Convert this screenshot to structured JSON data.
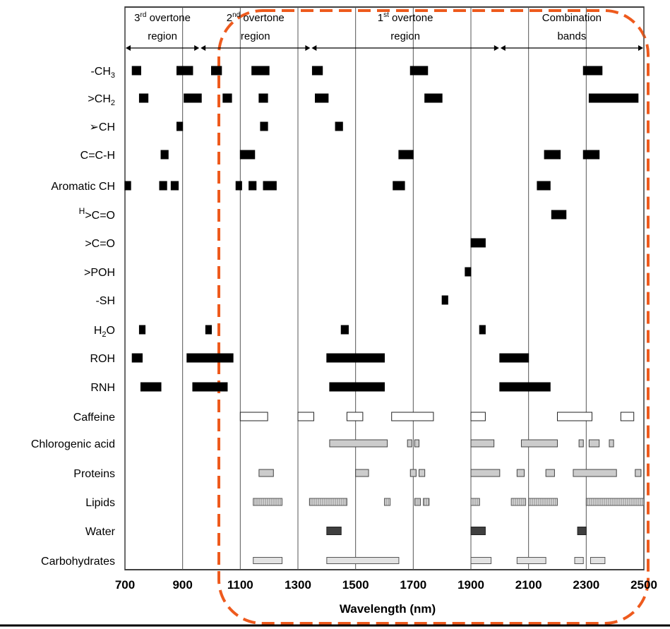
{
  "chart_data": {
    "type": "timeline",
    "xlabel": "Wavelength (nm)",
    "xlim": [
      700,
      2500
    ],
    "xticks": [
      "700",
      "900",
      "1100",
      "1300",
      "1500",
      "1700",
      "1900",
      "2100",
      "2300",
      "2500"
    ],
    "regions": [
      {
        "text": "overtone",
        "ord": "3",
        "sup": "rd",
        "line2": "region",
        "from": 700,
        "to": 960
      },
      {
        "text": "overtone",
        "ord": "2",
        "sup": "nd",
        "line2": "region",
        "from": 960,
        "to": 1345
      },
      {
        "text": "overtone",
        "ord": "1",
        "sup": "st",
        "line2": "region",
        "from": 1345,
        "to": 2000
      },
      {
        "text": "Combination",
        "line2": "bands",
        "from": 2000,
        "to": 2500
      }
    ],
    "rows": [
      {
        "label": "-CH",
        "sub": "3",
        "style": "solid",
        "bands": [
          [
            725,
            755
          ],
          [
            880,
            935
          ],
          [
            1000,
            1035
          ],
          [
            1140,
            1200
          ],
          [
            1350,
            1385
          ],
          [
            1690,
            1750
          ],
          [
            2290,
            2355
          ]
        ]
      },
      {
        "label": ">CH",
        "sub": "2",
        "style": "solid",
        "bands": [
          [
            750,
            780
          ],
          [
            905,
            965
          ],
          [
            1040,
            1070
          ],
          [
            1165,
            1195
          ],
          [
            1360,
            1405
          ],
          [
            1740,
            1800
          ],
          [
            2310,
            2480
          ]
        ]
      },
      {
        "label": "➢CH",
        "style": "solid",
        "bands": [
          [
            880,
            900
          ],
          [
            1170,
            1195
          ],
          [
            1430,
            1455
          ]
        ]
      },
      {
        "label": "C=C-H",
        "style": "solid",
        "bands": [
          [
            825,
            850
          ],
          [
            1100,
            1150
          ],
          [
            1650,
            1700
          ],
          [
            2155,
            2210
          ],
          [
            2290,
            2345
          ]
        ]
      },
      {
        "label": "Aromatic CH",
        "style": "solid",
        "bands": [
          [
            700,
            720
          ],
          [
            820,
            845
          ],
          [
            860,
            885
          ],
          [
            1085,
            1105
          ],
          [
            1130,
            1155
          ],
          [
            1180,
            1225
          ],
          [
            1630,
            1670
          ],
          [
            2130,
            2175
          ]
        ]
      },
      {
        "label": "C=O",
        "pre_sup": "H",
        "pre": ">",
        "style": "solid",
        "bands": [
          [
            2180,
            2230
          ]
        ]
      },
      {
        "label": ">C=O",
        "style": "solid",
        "bands": [
          [
            1900,
            1950
          ]
        ]
      },
      {
        "label": ">POH",
        "style": "solid",
        "bands": [
          [
            1880,
            1900
          ]
        ]
      },
      {
        "label": "-SH",
        "style": "solid",
        "bands": [
          [
            1800,
            1820
          ]
        ]
      },
      {
        "label": "H",
        "sub": "2",
        "post": "O",
        "style": "solid",
        "bands": [
          [
            750,
            770
          ],
          [
            980,
            1000
          ],
          [
            1450,
            1475
          ],
          [
            1930,
            1950
          ]
        ]
      },
      {
        "label": "ROH",
        "style": "solid",
        "bands": [
          [
            725,
            760
          ],
          [
            915,
            1075
          ],
          [
            1400,
            1600
          ],
          [
            2000,
            2100
          ]
        ]
      },
      {
        "label": "RNH",
        "style": "solid",
        "bands": [
          [
            755,
            825
          ],
          [
            935,
            1055
          ],
          [
            1410,
            1600
          ],
          [
            2000,
            2175
          ]
        ]
      },
      {
        "label": "Caffeine",
        "style": "open",
        "bands": [
          [
            1100,
            1195
          ],
          [
            1300,
            1355
          ],
          [
            1470,
            1525
          ],
          [
            1625,
            1770
          ],
          [
            1900,
            1950
          ],
          [
            2200,
            2320
          ],
          [
            2420,
            2465
          ]
        ]
      },
      {
        "label": "Chlorogenic acid",
        "style": "gray",
        "bands": [
          [
            1410,
            1610
          ],
          [
            1680,
            1695
          ],
          [
            1705,
            1720
          ],
          [
            1900,
            1980
          ],
          [
            2075,
            2200
          ],
          [
            2275,
            2290
          ],
          [
            2310,
            2345
          ],
          [
            2380,
            2395
          ]
        ]
      },
      {
        "label": "Proteins",
        "style": "gray",
        "bands": [
          [
            1165,
            1215
          ],
          [
            1500,
            1545
          ],
          [
            1690,
            1710
          ],
          [
            1720,
            1740
          ],
          [
            1900,
            2000
          ],
          [
            2060,
            2085
          ],
          [
            2160,
            2190
          ],
          [
            2255,
            2405
          ],
          [
            2470,
            2490
          ]
        ]
      },
      {
        "label": "Lipids",
        "style": "hatch",
        "bands": [
          [
            1145,
            1245
          ],
          [
            1340,
            1470
          ],
          [
            1600,
            1620
          ],
          [
            1705,
            1725
          ],
          [
            1735,
            1755
          ],
          [
            1900,
            1930
          ],
          [
            2040,
            2090
          ],
          [
            2100,
            2200
          ],
          [
            2300,
            2500
          ]
        ]
      },
      {
        "label": "Water",
        "style": "dark",
        "bands": [
          [
            1400,
            1450
          ],
          [
            1900,
            1950
          ],
          [
            2270,
            2300
          ]
        ]
      },
      {
        "label": "Carbohydrates",
        "style": "light",
        "bands": [
          [
            1145,
            1245
          ],
          [
            1400,
            1650
          ],
          [
            1900,
            1970
          ],
          [
            2060,
            2160
          ],
          [
            2260,
            2290
          ],
          [
            2315,
            2365
          ]
        ]
      }
    ]
  }
}
